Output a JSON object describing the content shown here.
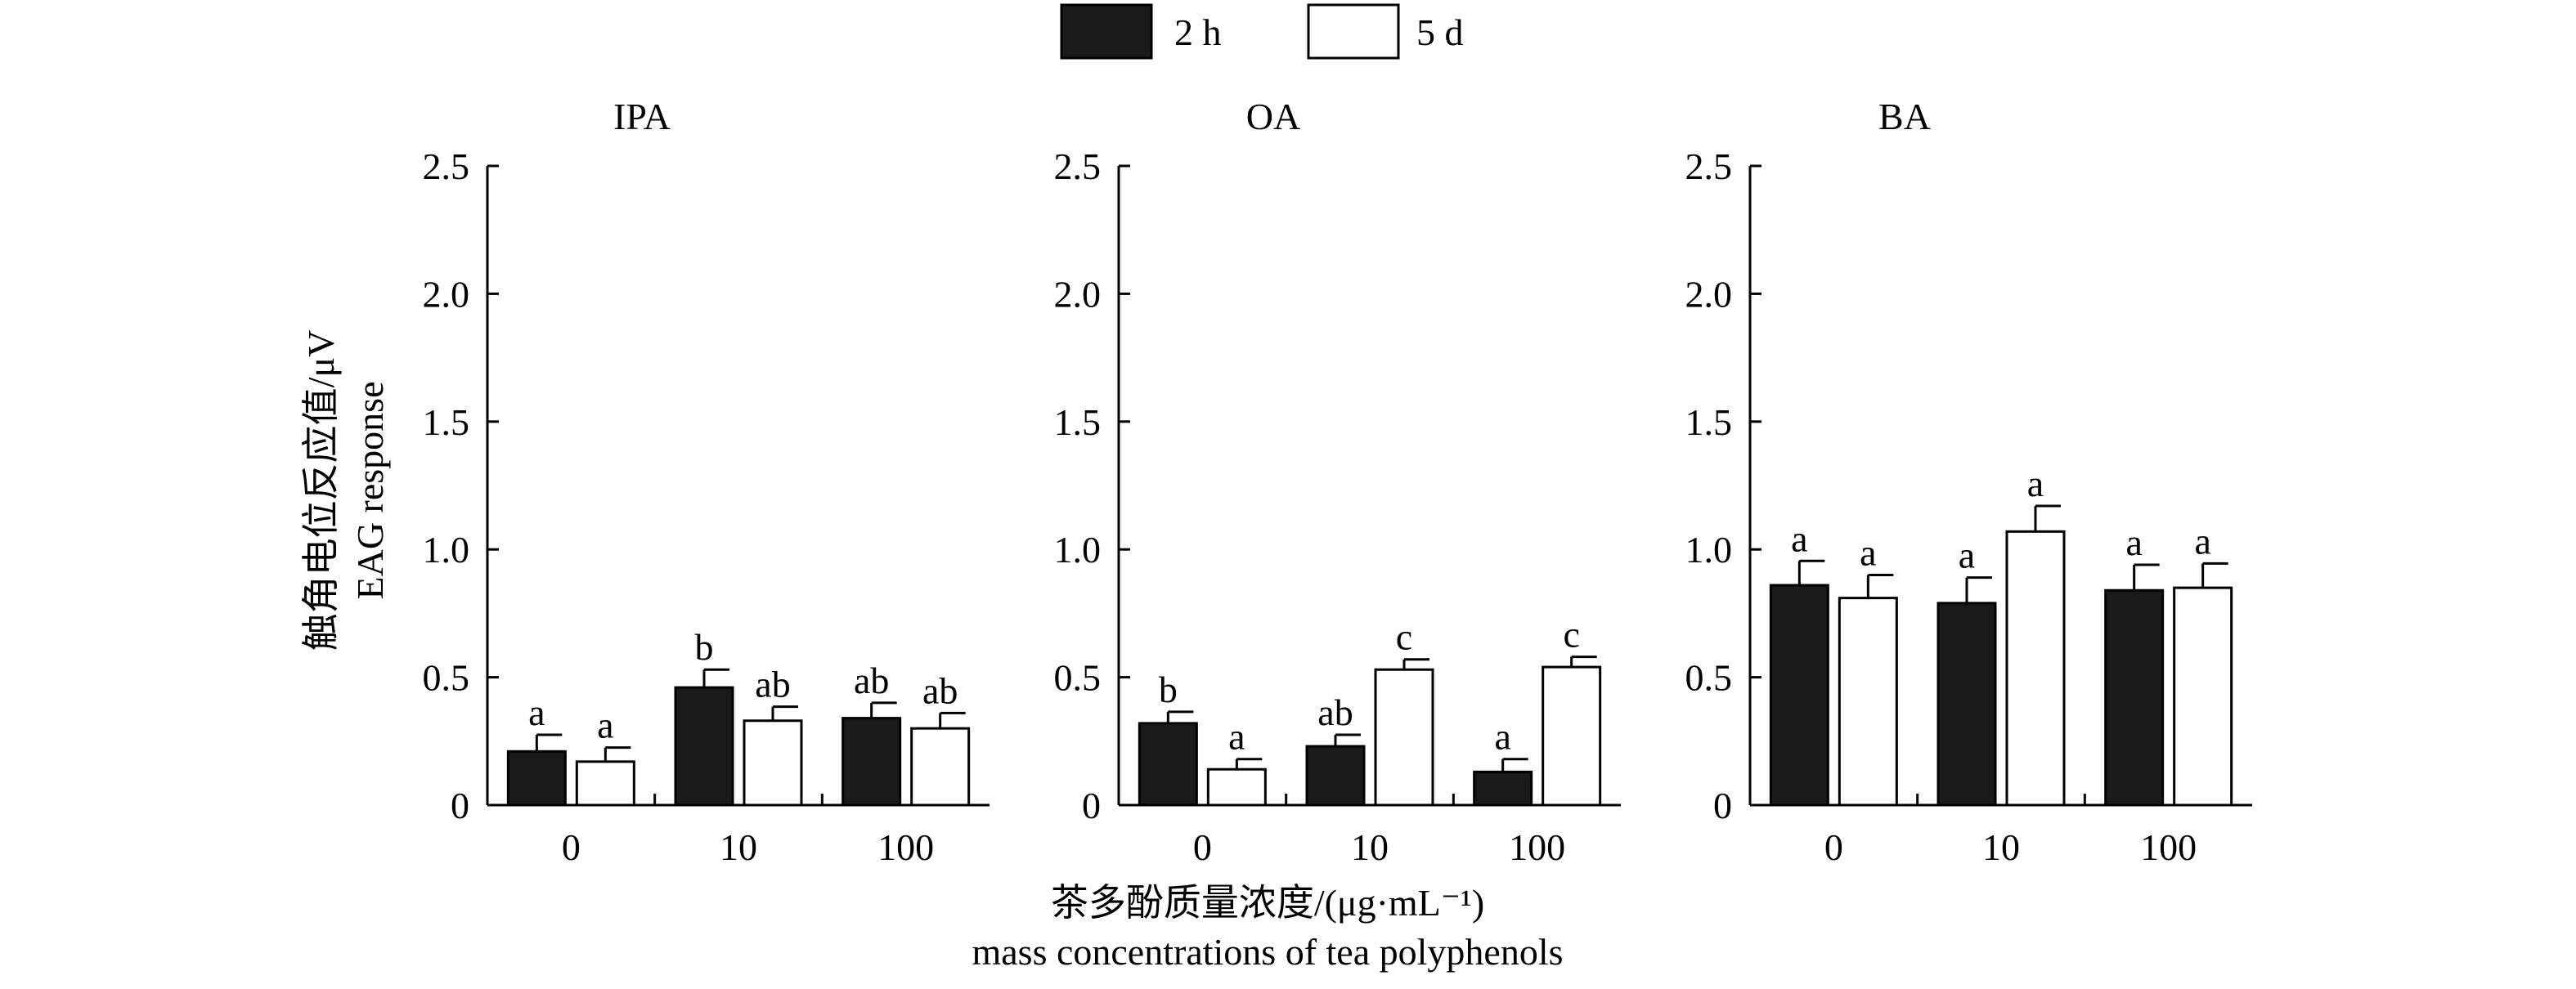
{
  "legend": [
    {
      "label": "2 h",
      "fill": "#1a1a1a"
    },
    {
      "label": "5 d",
      "fill": "#ffffff"
    }
  ],
  "ylabel_cn": "触角电位反应值/μV",
  "ylabel_en": "EAG response",
  "xlabel_cn": "茶多酚质量浓度/(μg·mL⁻¹)",
  "xlabel_en": "mass concentrations of tea polyphenols",
  "chart_data": [
    {
      "type": "bar",
      "title": "IPA",
      "categories": [
        "0",
        "10",
        "100"
      ],
      "ylim": [
        0,
        2.5
      ],
      "yticks": [
        "0",
        "0.5",
        "1.0",
        "1.5",
        "2.0",
        "2.5"
      ],
      "series": [
        {
          "name": "2 h",
          "values": [
            0.21,
            0.46,
            0.34
          ],
          "errors": [
            0.065,
            0.07,
            0.06
          ],
          "letters": [
            "a",
            "b",
            "ab"
          ]
        },
        {
          "name": "5 d",
          "values": [
            0.17,
            0.33,
            0.3
          ],
          "errors": [
            0.055,
            0.055,
            0.06
          ],
          "letters": [
            "a",
            "ab",
            "ab"
          ]
        }
      ]
    },
    {
      "type": "bar",
      "title": "OA",
      "categories": [
        "0",
        "10",
        "100"
      ],
      "ylim": [
        0,
        2.5
      ],
      "yticks": [
        "0",
        "0.5",
        "1.0",
        "1.5",
        "2.0",
        "2.5"
      ],
      "series": [
        {
          "name": "2 h",
          "values": [
            0.32,
            0.23,
            0.13
          ],
          "errors": [
            0.045,
            0.045,
            0.05
          ],
          "letters": [
            "b",
            "ab",
            "a"
          ]
        },
        {
          "name": "5 d",
          "values": [
            0.14,
            0.53,
            0.54
          ],
          "errors": [
            0.04,
            0.04,
            0.04
          ],
          "letters": [
            "a",
            "c",
            "c"
          ]
        }
      ]
    },
    {
      "type": "bar",
      "title": "BA",
      "categories": [
        "0",
        "10",
        "100"
      ],
      "ylim": [
        0,
        2.5
      ],
      "yticks": [
        "0",
        "0.5",
        "1.0",
        "1.5",
        "2.0",
        "2.5"
      ],
      "series": [
        {
          "name": "2 h",
          "values": [
            0.86,
            0.79,
            0.84
          ],
          "errors": [
            0.095,
            0.1,
            0.1
          ],
          "letters": [
            "a",
            "a",
            "a"
          ]
        },
        {
          "name": "5 d",
          "values": [
            0.81,
            1.07,
            0.85
          ],
          "errors": [
            0.09,
            0.1,
            0.095
          ],
          "letters": [
            "a",
            "a",
            "a"
          ]
        }
      ]
    }
  ]
}
